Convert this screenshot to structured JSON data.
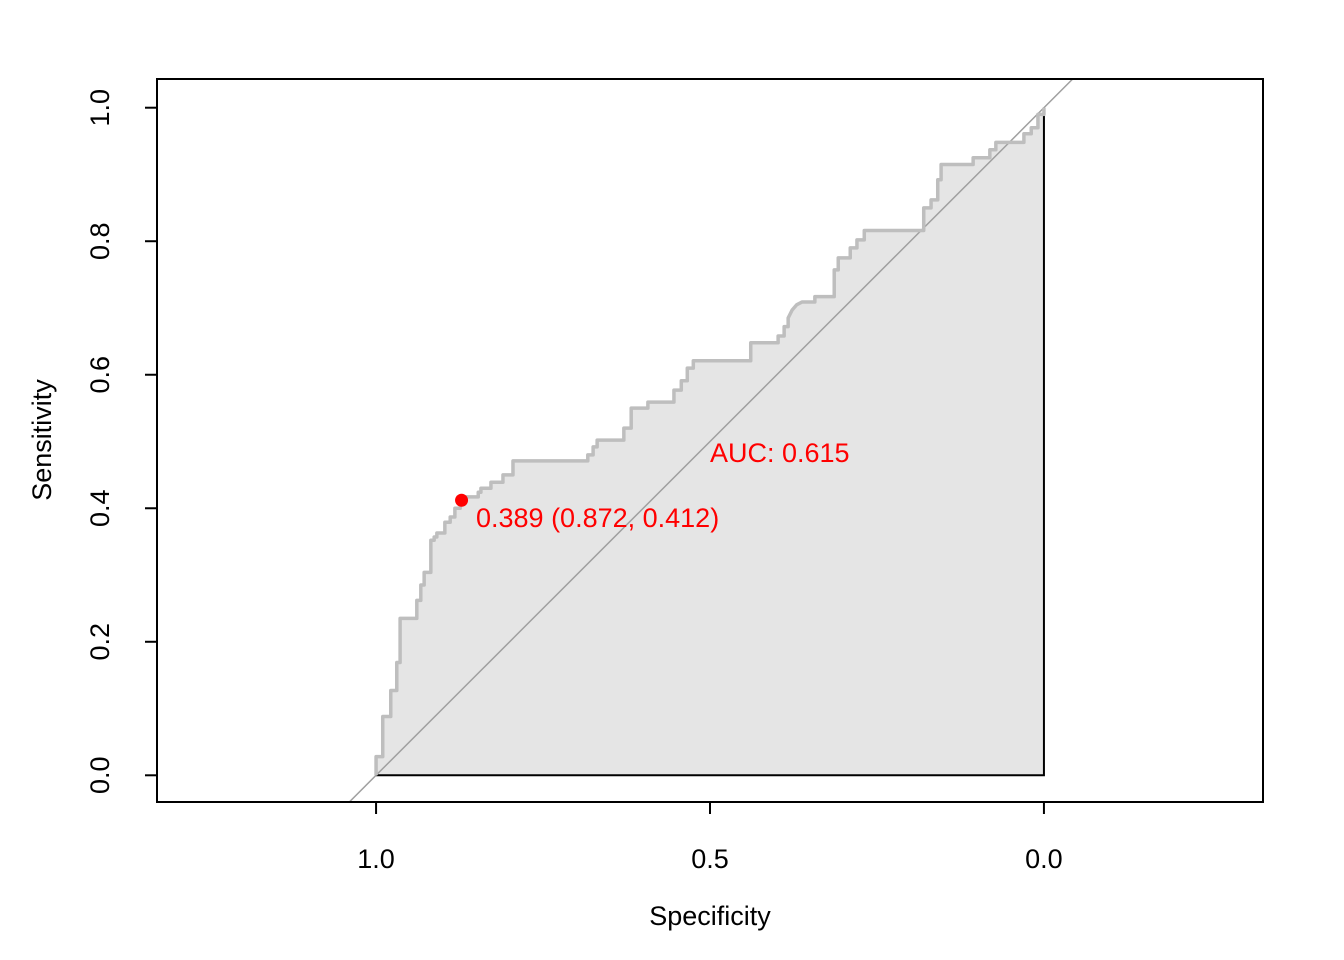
{
  "chart_data": {
    "type": "roc",
    "x_label": "Specificity",
    "y_label": "Sensitivity",
    "xlim": [
      1.328,
      -0.328
    ],
    "ylim": [
      -0.04,
      1.043
    ],
    "xticks": [
      {
        "value": 1,
        "label": "1.0"
      },
      {
        "value": 0.5,
        "label": "0.5"
      },
      {
        "value": 0,
        "label": "0.0"
      }
    ],
    "yticks": [
      {
        "value": 0,
        "label": "0.0"
      },
      {
        "value": 0.2,
        "label": "0.2"
      },
      {
        "value": 0.4,
        "label": "0.4"
      },
      {
        "value": 0.6,
        "label": "0.6"
      },
      {
        "value": 0.8,
        "label": "0.8"
      },
      {
        "value": 1,
        "label": "1.0"
      }
    ],
    "series": [
      {
        "color": "#bebebe",
        "fill": "#e5e5e5",
        "x": [
          1,
          1,
          0.99,
          0.99,
          0.978,
          0.978,
          0.969,
          0.969,
          0.964,
          0.964,
          0.939,
          0.939,
          0.933,
          0.933,
          0.928,
          0.928,
          0.918,
          0.918,
          0.913,
          0.913,
          0.909,
          0.909,
          0.897,
          0.897,
          0.889,
          0.889,
          0.882,
          0.882,
          0.874,
          0.874,
          0.867,
          0.867,
          0.847,
          0.847,
          0.843,
          0.843,
          0.828,
          0.828,
          0.81,
          0.81,
          0.795,
          0.795,
          0.683,
          0.683,
          0.675,
          0.675,
          0.669,
          0.669,
          0.629,
          0.629,
          0.618,
          0.618,
          0.593,
          0.593,
          0.554,
          0.554,
          0.543,
          0.543,
          0.534,
          0.534,
          0.525,
          0.525,
          0.439,
          0.439,
          0.398,
          0.398,
          0.389,
          0.389,
          0.383,
          0.383,
          0.377,
          0.37,
          0.362,
          0.343,
          0.343,
          0.314,
          0.314,
          0.308,
          0.308,
          0.29,
          0.29,
          0.28,
          0.28,
          0.269,
          0.269,
          0.18,
          0.18,
          0.169,
          0.169,
          0.159,
          0.159,
          0.154,
          0.154,
          0.106,
          0.106,
          0.081,
          0.081,
          0.072,
          0.072,
          0.03,
          0.03,
          0.019,
          0.019,
          0.009,
          0.009,
          0,
          0
        ],
        "values": [
          0,
          0.028,
          0.028,
          0.088,
          0.088,
          0.127,
          0.127,
          0.169,
          0.169,
          0.235,
          0.235,
          0.262,
          0.262,
          0.285,
          0.285,
          0.304,
          0.304,
          0.352,
          0.352,
          0.357,
          0.357,
          0.363,
          0.363,
          0.379,
          0.379,
          0.387,
          0.387,
          0.4,
          0.4,
          0.412,
          0.412,
          0.417,
          0.417,
          0.424,
          0.424,
          0.43,
          0.43,
          0.439,
          0.439,
          0.45,
          0.45,
          0.471,
          0.471,
          0.48,
          0.48,
          0.492,
          0.492,
          0.502,
          0.502,
          0.52,
          0.52,
          0.55,
          0.55,
          0.559,
          0.559,
          0.577,
          0.577,
          0.591,
          0.591,
          0.61,
          0.61,
          0.621,
          0.621,
          0.648,
          0.648,
          0.658,
          0.658,
          0.672,
          0.672,
          0.685,
          0.697,
          0.705,
          0.709,
          0.709,
          0.717,
          0.717,
          0.757,
          0.757,
          0.775,
          0.775,
          0.79,
          0.79,
          0.802,
          0.802,
          0.816,
          0.816,
          0.85,
          0.85,
          0.862,
          0.862,
          0.892,
          0.892,
          0.915,
          0.915,
          0.925,
          0.925,
          0.937,
          0.937,
          0.948,
          0.948,
          0.961,
          0.961,
          0.97,
          0.97,
          0.99,
          0.99,
          1
        ]
      }
    ],
    "auc_label": "AUC: 0.615",
    "best_point": {
      "x": 0.872,
      "y": 0.412,
      "label": "0.389 (0.872, 0.412)",
      "color": "#ff0000"
    },
    "diagonal_color": "#a0a0a0"
  }
}
